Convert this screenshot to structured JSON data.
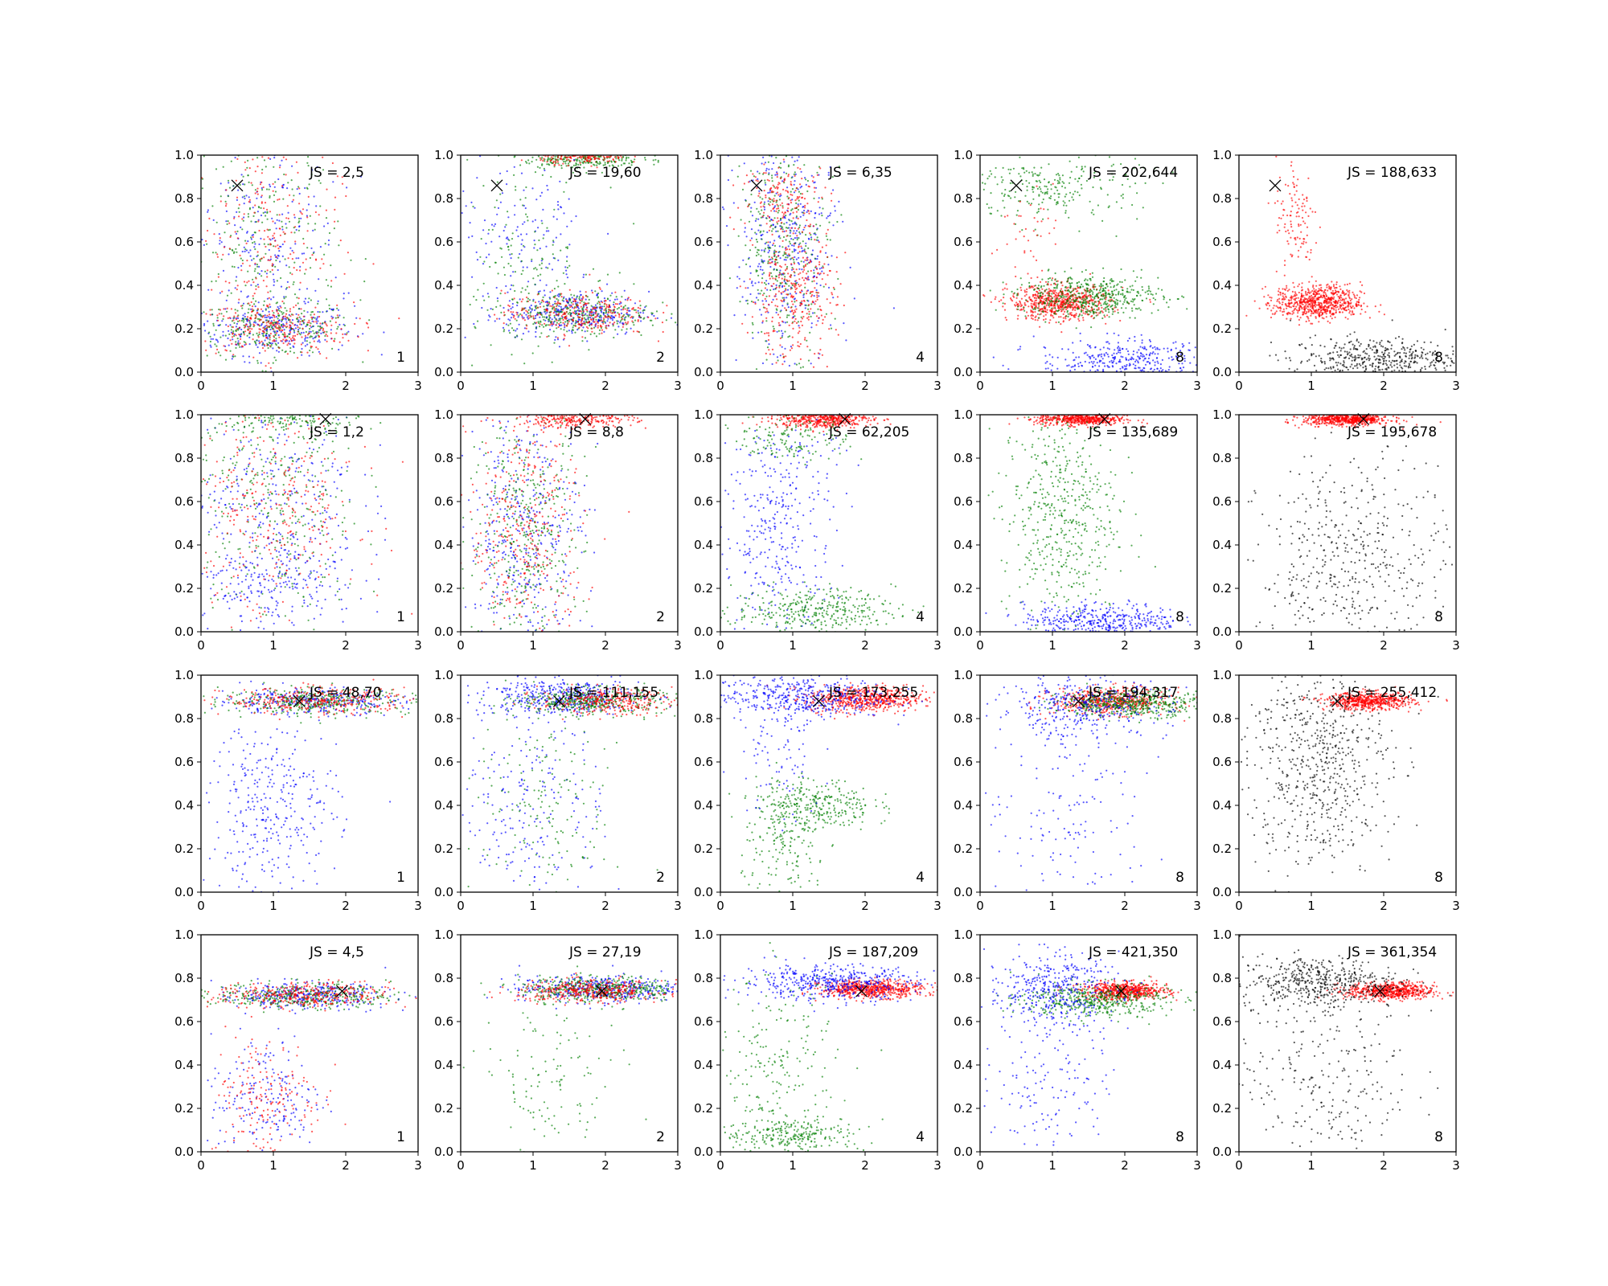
{
  "chart_data": {
    "type": "scatter",
    "rows": 4,
    "cols": 5,
    "xlim": [
      0,
      3
    ],
    "ylim": [
      0,
      1
    ],
    "xticks": [
      0,
      1,
      2,
      3
    ],
    "yticks": [
      "0.0",
      "0.2",
      "0.4",
      "0.6",
      "0.8",
      "1.0"
    ],
    "grid": false,
    "series_colors": {
      "blue": "#0000ff",
      "green": "#008000",
      "red": "#ff0000",
      "black": "#000000"
    },
    "marker_x": [
      {
        "x": 0.5,
        "y": 0.86
      },
      {
        "x": 1.72,
        "y": 0.98
      },
      {
        "x": 1.36,
        "y": 0.88
      },
      {
        "x": 1.95,
        "y": 0.74
      }
    ],
    "panels": [
      {
        "label": "JS = 2,5",
        "number": "1",
        "clusters": [
          {
            "color": "blue",
            "x": 1.0,
            "y": 0.2,
            "sx": 0.55,
            "sy": 0.06,
            "n": 260
          },
          {
            "color": "green",
            "x": 1.0,
            "y": 0.2,
            "sx": 0.55,
            "sy": 0.06,
            "n": 260
          },
          {
            "color": "red",
            "x": 1.0,
            "y": 0.2,
            "sx": 0.55,
            "sy": 0.06,
            "n": 260
          },
          {
            "color": "blue",
            "x": 0.9,
            "y": 0.6,
            "sx": 0.5,
            "sy": 0.25,
            "n": 240
          },
          {
            "color": "green",
            "x": 0.9,
            "y": 0.6,
            "sx": 0.5,
            "sy": 0.25,
            "n": 240
          },
          {
            "color": "red",
            "x": 0.9,
            "y": 0.6,
            "sx": 0.5,
            "sy": 0.25,
            "n": 240
          }
        ]
      },
      {
        "label": "JS = 19,60",
        "number": "2",
        "clusters": [
          {
            "color": "blue",
            "x": 1.6,
            "y": 0.27,
            "sx": 0.5,
            "sy": 0.05,
            "n": 320
          },
          {
            "color": "green",
            "x": 1.6,
            "y": 0.27,
            "sx": 0.5,
            "sy": 0.05,
            "n": 320
          },
          {
            "color": "red",
            "x": 1.6,
            "y": 0.27,
            "sx": 0.5,
            "sy": 0.05,
            "n": 300
          },
          {
            "color": "green",
            "x": 1.7,
            "y": 0.98,
            "sx": 0.4,
            "sy": 0.02,
            "n": 220
          },
          {
            "color": "red",
            "x": 1.7,
            "y": 0.99,
            "sx": 0.3,
            "sy": 0.015,
            "n": 150
          },
          {
            "color": "blue",
            "x": 0.9,
            "y": 0.55,
            "sx": 0.5,
            "sy": 0.22,
            "n": 160
          },
          {
            "color": "green",
            "x": 0.9,
            "y": 0.55,
            "sx": 0.5,
            "sy": 0.22,
            "n": 160
          }
        ]
      },
      {
        "label": "JS = 6,35",
        "number": "4",
        "clusters": [
          {
            "color": "blue",
            "x": 0.9,
            "y": 0.55,
            "sx": 0.35,
            "sy": 0.28,
            "n": 420
          },
          {
            "color": "green",
            "x": 0.9,
            "y": 0.6,
            "sx": 0.3,
            "sy": 0.25,
            "n": 360
          },
          {
            "color": "red",
            "x": 1.0,
            "y": 0.35,
            "sx": 0.3,
            "sy": 0.15,
            "n": 320
          },
          {
            "color": "red",
            "x": 0.9,
            "y": 0.8,
            "sx": 0.3,
            "sy": 0.08,
            "n": 160
          }
        ]
      },
      {
        "label": "JS = 202,644",
        "number": "8",
        "clusters": [
          {
            "color": "red",
            "x": 1.1,
            "y": 0.32,
            "sx": 0.35,
            "sy": 0.04,
            "n": 650
          },
          {
            "color": "green",
            "x": 1.5,
            "y": 0.35,
            "sx": 0.5,
            "sy": 0.05,
            "n": 500
          },
          {
            "color": "green",
            "x": 1.0,
            "y": 0.85,
            "sx": 0.6,
            "sy": 0.08,
            "n": 260
          },
          {
            "color": "blue",
            "x": 2.0,
            "y": 0.05,
            "sx": 0.6,
            "sy": 0.05,
            "n": 380
          },
          {
            "color": "red",
            "x": 0.6,
            "y": 0.65,
            "sx": 0.2,
            "sy": 0.1,
            "n": 40
          }
        ]
      },
      {
        "label": "JS = 188,633",
        "number": "8",
        "clusters": [
          {
            "color": "red",
            "x": 1.1,
            "y": 0.32,
            "sx": 0.3,
            "sy": 0.04,
            "n": 700
          },
          {
            "color": "red",
            "x": 0.8,
            "y": 0.7,
            "sx": 0.15,
            "sy": 0.15,
            "n": 120
          },
          {
            "color": "black",
            "x": 1.9,
            "y": 0.06,
            "sx": 0.6,
            "sy": 0.05,
            "n": 480
          }
        ]
      },
      {
        "label": "JS = 1,2",
        "number": "1",
        "clusters": [
          {
            "color": "blue",
            "x": 1.0,
            "y": 0.6,
            "sx": 0.6,
            "sy": 0.3,
            "n": 360
          },
          {
            "color": "green",
            "x": 1.0,
            "y": 0.6,
            "sx": 0.6,
            "sy": 0.3,
            "n": 360
          },
          {
            "color": "red",
            "x": 1.0,
            "y": 0.6,
            "sx": 0.6,
            "sy": 0.3,
            "n": 360
          },
          {
            "color": "green",
            "x": 1.2,
            "y": 0.97,
            "sx": 0.5,
            "sy": 0.03,
            "n": 120
          },
          {
            "color": "blue",
            "x": 1.0,
            "y": 0.2,
            "sx": 0.5,
            "sy": 0.07,
            "n": 150
          }
        ]
      },
      {
        "label": "JS = 8,8",
        "number": "2",
        "clusters": [
          {
            "color": "blue",
            "x": 0.9,
            "y": 0.45,
            "sx": 0.4,
            "sy": 0.3,
            "n": 420
          },
          {
            "color": "green",
            "x": 0.9,
            "y": 0.45,
            "sx": 0.4,
            "sy": 0.3,
            "n": 420
          },
          {
            "color": "red",
            "x": 0.9,
            "y": 0.45,
            "sx": 0.4,
            "sy": 0.3,
            "n": 380
          },
          {
            "color": "red",
            "x": 1.6,
            "y": 0.98,
            "sx": 0.4,
            "sy": 0.02,
            "n": 260
          }
        ]
      },
      {
        "label": "JS = 62,205",
        "number": "4",
        "clusters": [
          {
            "color": "red",
            "x": 1.4,
            "y": 0.98,
            "sx": 0.35,
            "sy": 0.02,
            "n": 500
          },
          {
            "color": "blue",
            "x": 0.8,
            "y": 0.5,
            "sx": 0.4,
            "sy": 0.3,
            "n": 380
          },
          {
            "color": "green",
            "x": 1.3,
            "y": 0.1,
            "sx": 0.55,
            "sy": 0.05,
            "n": 340
          },
          {
            "color": "green",
            "x": 1.0,
            "y": 0.9,
            "sx": 0.4,
            "sy": 0.06,
            "n": 150
          }
        ]
      },
      {
        "label": "JS = 135,689",
        "number": "8",
        "clusters": [
          {
            "color": "red",
            "x": 1.4,
            "y": 0.98,
            "sx": 0.3,
            "sy": 0.015,
            "n": 550
          },
          {
            "color": "green",
            "x": 1.1,
            "y": 0.55,
            "sx": 0.4,
            "sy": 0.25,
            "n": 500
          },
          {
            "color": "blue",
            "x": 1.7,
            "y": 0.05,
            "sx": 0.55,
            "sy": 0.04,
            "n": 420
          }
        ]
      },
      {
        "label": "JS = 195,678",
        "number": "8",
        "clusters": [
          {
            "color": "red",
            "x": 1.5,
            "y": 0.98,
            "sx": 0.3,
            "sy": 0.015,
            "n": 650
          },
          {
            "color": "black",
            "x": 1.6,
            "y": 0.3,
            "sx": 0.65,
            "sy": 0.25,
            "n": 500
          }
        ]
      },
      {
        "label": "JS = 48,70",
        "number": "1",
        "clusters": [
          {
            "color": "blue",
            "x": 1.5,
            "y": 0.88,
            "sx": 0.65,
            "sy": 0.03,
            "n": 300
          },
          {
            "color": "green",
            "x": 1.6,
            "y": 0.88,
            "sx": 0.65,
            "sy": 0.03,
            "n": 330
          },
          {
            "color": "red",
            "x": 1.6,
            "y": 0.88,
            "sx": 0.65,
            "sy": 0.03,
            "n": 330
          },
          {
            "color": "blue",
            "x": 1.0,
            "y": 0.4,
            "sx": 0.45,
            "sy": 0.2,
            "n": 320
          }
        ]
      },
      {
        "label": "JS = 111,155",
        "number": "2",
        "clusters": [
          {
            "color": "blue",
            "x": 1.4,
            "y": 0.9,
            "sx": 0.55,
            "sy": 0.04,
            "n": 420
          },
          {
            "color": "green",
            "x": 1.8,
            "y": 0.88,
            "sx": 0.5,
            "sy": 0.03,
            "n": 380
          },
          {
            "color": "red",
            "x": 2.0,
            "y": 0.88,
            "sx": 0.45,
            "sy": 0.03,
            "n": 300
          },
          {
            "color": "blue",
            "x": 1.0,
            "y": 0.45,
            "sx": 0.5,
            "sy": 0.25,
            "n": 220
          },
          {
            "color": "green",
            "x": 1.2,
            "y": 0.4,
            "sx": 0.5,
            "sy": 0.22,
            "n": 160
          }
        ]
      },
      {
        "label": "JS = 173,255",
        "number": "4",
        "clusters": [
          {
            "color": "red",
            "x": 2.0,
            "y": 0.89,
            "sx": 0.4,
            "sy": 0.03,
            "n": 600
          },
          {
            "color": "blue",
            "x": 1.1,
            "y": 0.9,
            "sx": 0.6,
            "sy": 0.05,
            "n": 450
          },
          {
            "color": "green",
            "x": 1.3,
            "y": 0.4,
            "sx": 0.4,
            "sy": 0.06,
            "n": 300
          },
          {
            "color": "green",
            "x": 0.9,
            "y": 0.2,
            "sx": 0.3,
            "sy": 0.12,
            "n": 150
          },
          {
            "color": "blue",
            "x": 0.8,
            "y": 0.6,
            "sx": 0.3,
            "sy": 0.15,
            "n": 80
          }
        ]
      },
      {
        "label": "JS = 194,317",
        "number": "8",
        "clusters": [
          {
            "color": "red",
            "x": 1.8,
            "y": 0.88,
            "sx": 0.4,
            "sy": 0.03,
            "n": 550
          },
          {
            "color": "green",
            "x": 2.1,
            "y": 0.87,
            "sx": 0.5,
            "sy": 0.03,
            "n": 500
          },
          {
            "color": "blue",
            "x": 1.4,
            "y": 0.85,
            "sx": 0.6,
            "sy": 0.07,
            "n": 350
          },
          {
            "color": "blue",
            "x": 1.2,
            "y": 0.4,
            "sx": 0.6,
            "sy": 0.25,
            "n": 150
          }
        ]
      },
      {
        "label": "JS = 255,412",
        "number": "8",
        "clusters": [
          {
            "color": "red",
            "x": 1.8,
            "y": 0.88,
            "sx": 0.3,
            "sy": 0.02,
            "n": 600
          },
          {
            "color": "black",
            "x": 1.1,
            "y": 0.6,
            "sx": 0.5,
            "sy": 0.25,
            "n": 650
          }
        ]
      },
      {
        "label": "JS = 4,5",
        "number": "1",
        "clusters": [
          {
            "color": "blue",
            "x": 1.4,
            "y": 0.72,
            "sx": 0.6,
            "sy": 0.03,
            "n": 340
          },
          {
            "color": "green",
            "x": 1.4,
            "y": 0.72,
            "sx": 0.6,
            "sy": 0.03,
            "n": 340
          },
          {
            "color": "red",
            "x": 1.4,
            "y": 0.72,
            "sx": 0.6,
            "sy": 0.03,
            "n": 340
          },
          {
            "color": "blue",
            "x": 0.9,
            "y": 0.25,
            "sx": 0.4,
            "sy": 0.15,
            "n": 200
          },
          {
            "color": "red",
            "x": 0.9,
            "y": 0.25,
            "sx": 0.4,
            "sy": 0.15,
            "n": 180
          }
        ]
      },
      {
        "label": "JS = 27,19",
        "number": "2",
        "clusters": [
          {
            "color": "blue",
            "x": 1.9,
            "y": 0.75,
            "sx": 0.55,
            "sy": 0.03,
            "n": 420
          },
          {
            "color": "green",
            "x": 1.9,
            "y": 0.75,
            "sx": 0.55,
            "sy": 0.03,
            "n": 420
          },
          {
            "color": "red",
            "x": 1.8,
            "y": 0.74,
            "sx": 0.5,
            "sy": 0.025,
            "n": 360
          },
          {
            "color": "green",
            "x": 1.2,
            "y": 0.3,
            "sx": 0.5,
            "sy": 0.2,
            "n": 120
          }
        ]
      },
      {
        "label": "JS = 187,209",
        "number": "4",
        "clusters": [
          {
            "color": "red",
            "x": 2.1,
            "y": 0.75,
            "sx": 0.35,
            "sy": 0.02,
            "n": 600
          },
          {
            "color": "blue",
            "x": 1.5,
            "y": 0.78,
            "sx": 0.6,
            "sy": 0.04,
            "n": 450
          },
          {
            "color": "green",
            "x": 1.0,
            "y": 0.08,
            "sx": 0.5,
            "sy": 0.04,
            "n": 250
          },
          {
            "color": "green",
            "x": 0.8,
            "y": 0.4,
            "sx": 0.4,
            "sy": 0.2,
            "n": 200
          }
        ]
      },
      {
        "label": "JS = 421,350",
        "number": "8",
        "clusters": [
          {
            "color": "red",
            "x": 2.0,
            "y": 0.74,
            "sx": 0.3,
            "sy": 0.02,
            "n": 600
          },
          {
            "color": "green",
            "x": 1.6,
            "y": 0.7,
            "sx": 0.5,
            "sy": 0.04,
            "n": 450
          },
          {
            "color": "blue",
            "x": 1.0,
            "y": 0.75,
            "sx": 0.45,
            "sy": 0.08,
            "n": 400
          },
          {
            "color": "blue",
            "x": 1.0,
            "y": 0.35,
            "sx": 0.4,
            "sy": 0.2,
            "n": 150
          }
        ]
      },
      {
        "label": "JS = 361,354",
        "number": "8",
        "clusters": [
          {
            "color": "red",
            "x": 2.1,
            "y": 0.74,
            "sx": 0.3,
            "sy": 0.02,
            "n": 600
          },
          {
            "color": "black",
            "x": 1.1,
            "y": 0.78,
            "sx": 0.55,
            "sy": 0.06,
            "n": 500
          },
          {
            "color": "black",
            "x": 1.2,
            "y": 0.35,
            "sx": 0.6,
            "sy": 0.22,
            "n": 250
          }
        ]
      }
    ]
  }
}
